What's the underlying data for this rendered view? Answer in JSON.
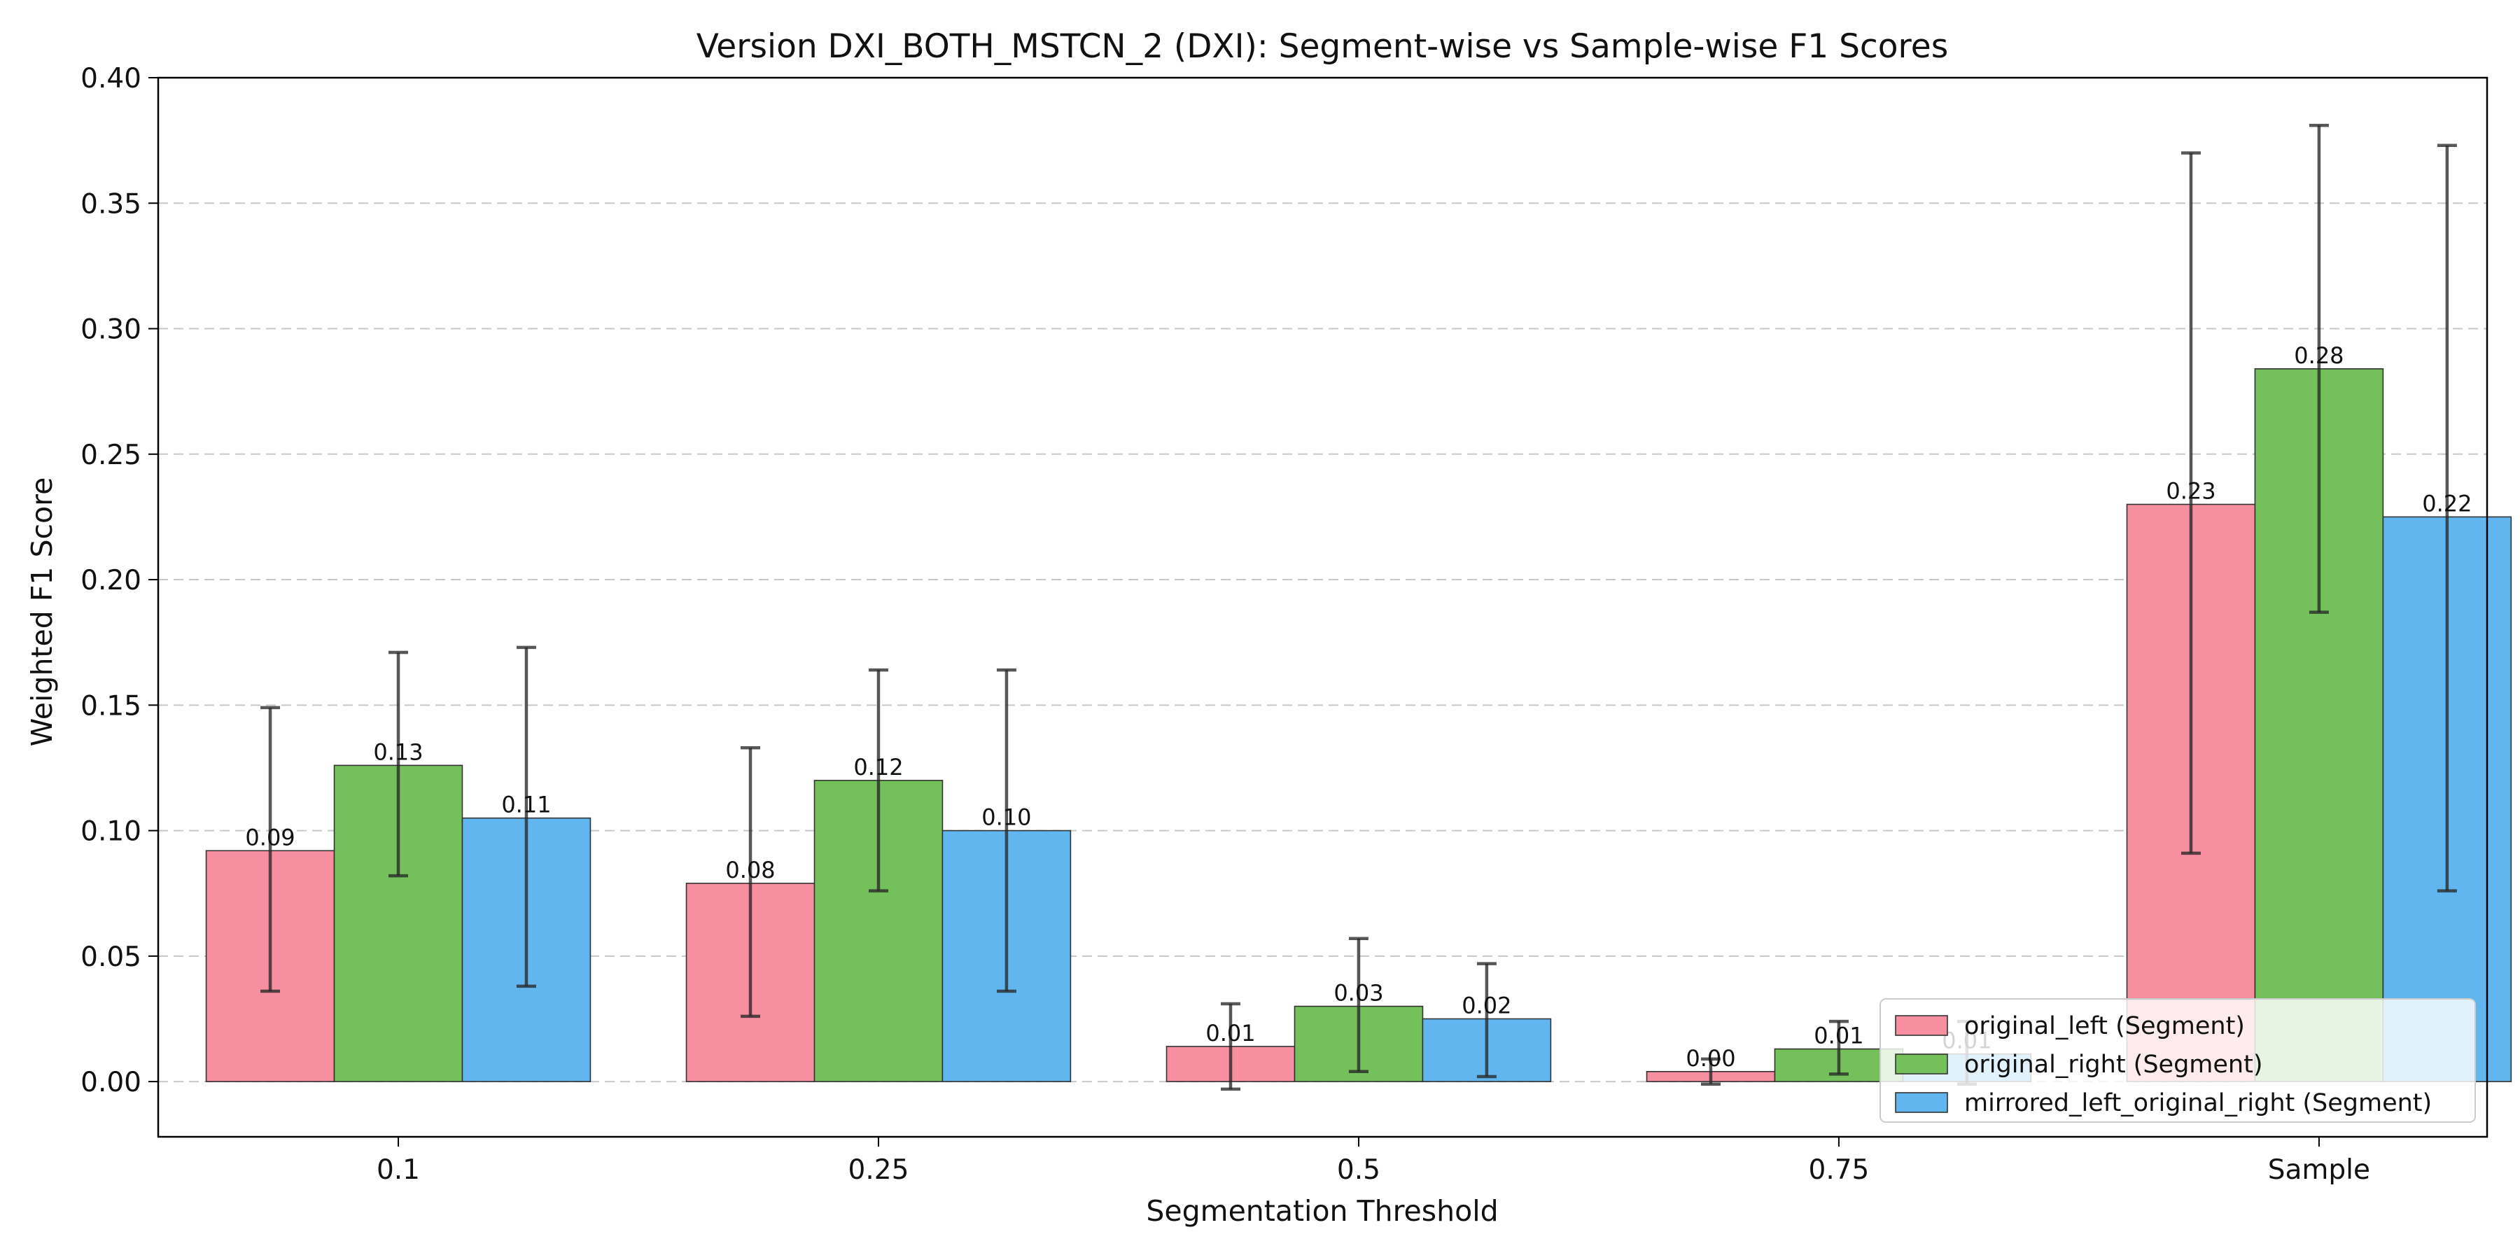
{
  "chart_data": {
    "type": "bar",
    "title": "Version DXI_BOTH_MSTCN_2 (DXI): Segment-wise vs Sample-wise F1 Scores",
    "xlabel": "Segmentation Threshold",
    "ylabel": "Weighted F1 Score",
    "categories": [
      "0.1",
      "0.25",
      "0.5",
      "0.75",
      "Sample"
    ],
    "ylim": [
      -0.022,
      0.4
    ],
    "yticks": [
      "0.00",
      "0.05",
      "0.10",
      "0.15",
      "0.20",
      "0.25",
      "0.30",
      "0.35",
      "0.40"
    ],
    "grid": true,
    "legend_position": "lower-right",
    "series": [
      {
        "name": "original_left (Segment)",
        "color": "#f78fa0",
        "values": [
          0.092,
          0.079,
          0.014,
          0.004,
          0.23
        ],
        "error_low": [
          0.036,
          0.026,
          -0.003,
          -0.001,
          0.091
        ],
        "error_high": [
          0.149,
          0.133,
          0.031,
          0.009,
          0.37
        ],
        "labels": [
          "0.09",
          "0.08",
          "0.01",
          "0.00",
          "0.23"
        ]
      },
      {
        "name": "original_right (Segment)",
        "color": "#74c05a",
        "values": [
          0.126,
          0.12,
          0.03,
          0.013,
          0.284
        ],
        "error_low": [
          0.082,
          0.076,
          0.004,
          0.003,
          0.187
        ],
        "error_high": [
          0.171,
          0.164,
          0.057,
          0.024,
          0.381
        ],
        "labels": [
          "0.13",
          "0.12",
          "0.03",
          "0.01",
          "0.28"
        ]
      },
      {
        "name": "mirrored_left_original_right (Segment)",
        "color": "#62b6f0",
        "values": [
          0.105,
          0.1,
          0.025,
          0.011,
          0.225
        ],
        "error_low": [
          0.038,
          0.036,
          0.002,
          -0.001,
          0.076
        ],
        "error_high": [
          0.173,
          0.164,
          0.047,
          0.024,
          0.373
        ],
        "labels": [
          "0.11",
          "0.10",
          "0.02",
          "0.01",
          "0.22"
        ]
      }
    ]
  }
}
